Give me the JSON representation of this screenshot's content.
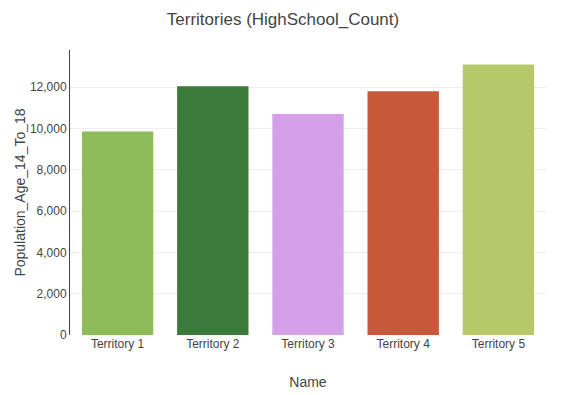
{
  "chart_data": {
    "type": "bar",
    "title": "Territories (HighSchool_Count)",
    "xlabel": "Name",
    "ylabel": "Population_Age_14_To_18",
    "categories": [
      "Territory 1",
      "Territory 2",
      "Territory 3",
      "Territory 4",
      "Territory 5"
    ],
    "values": [
      9850,
      12050,
      10700,
      11800,
      13100
    ],
    "colors": [
      "#8fbc5a",
      "#3a7a3a",
      "#d4a0e8",
      "#c8583a",
      "#b5c96a"
    ],
    "ylim": [
      0,
      13800
    ],
    "yticks": [
      0,
      {
        "value": 2000,
        "label": "2,000"
      },
      {
        "value": 4000,
        "label": "4,000"
      },
      {
        "value": 6000,
        "label": "6,000"
      },
      {
        "value": 8000,
        "label": "8,000"
      },
      {
        "value": 10000,
        "label": "10,000"
      },
      {
        "value": 12000,
        "label": "12,000"
      }
    ],
    "grid": true
  }
}
